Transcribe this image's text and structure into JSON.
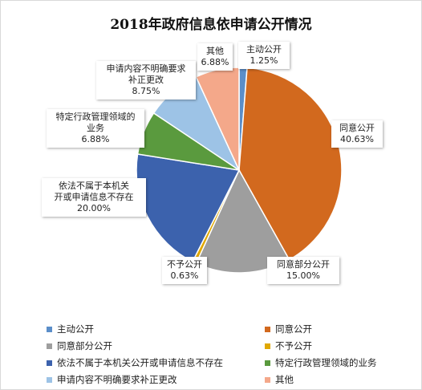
{
  "chart_data": {
    "type": "pie",
    "title": "2018年政府信息依申请公开情况",
    "slices": [
      {
        "name": "主动公开",
        "value": 1.25,
        "display": "1.25%",
        "color": "#5b8ec9",
        "label_lines": [
          "主动公开"
        ]
      },
      {
        "name": "同意公开",
        "value": 40.63,
        "display": "40.63%",
        "color": "#d2691e",
        "label_lines": [
          "同意公开"
        ]
      },
      {
        "name": "同意部分公开",
        "value": 15.0,
        "display": "15.00%",
        "color": "#9e9e9e",
        "label_lines": [
          "同意部分公开"
        ]
      },
      {
        "name": "不予公开",
        "value": 0.63,
        "display": "0.63%",
        "color": "#e0a800",
        "label_lines": [
          "不予公开"
        ]
      },
      {
        "name": "依法不属于本机关公开或申请信息不存在",
        "value": 20.0,
        "display": "20.00%",
        "color": "#3c62ad",
        "label_lines": [
          "依法不属于本机关",
          "开或申请信息不存在"
        ]
      },
      {
        "name": "特定行政管理领域的业务",
        "value": 6.88,
        "display": "6.88%",
        "color": "#5a9a3e",
        "label_lines": [
          "特定行政管理领域的",
          "业务"
        ]
      },
      {
        "name": "申请内容不明确要求补正更改",
        "value": 8.75,
        "display": "8.75%",
        "color": "#9dc3e6",
        "label_lines": [
          "申请内容不明确要求",
          "补正更改"
        ]
      },
      {
        "name": "其他",
        "value": 6.88,
        "display": "6.88%",
        "color": "#f4a88a",
        "label_lines": [
          "其他"
        ]
      }
    ],
    "legend_position": "bottom"
  }
}
